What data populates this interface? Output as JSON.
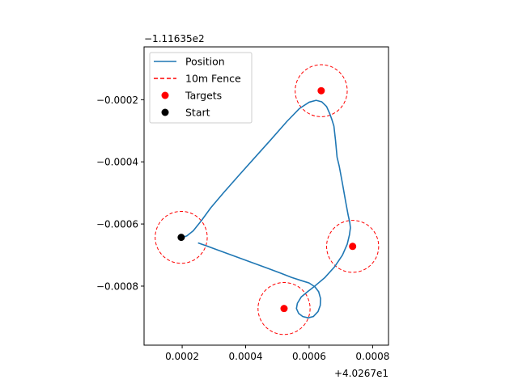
{
  "chart_data": {
    "type": "scatter",
    "x_offset_text": "+4.0267e1",
    "y_offset_text": "−1.11635e2",
    "xlim": [
      8e-05,
      0.00085
    ],
    "ylim": [
      -0.00099,
      -3e-05
    ],
    "x_ticks": [
      0.0002,
      0.0004,
      0.0006,
      0.0008
    ],
    "x_tick_labels": [
      "0.0002",
      "0.0004",
      "0.0006",
      "0.0008"
    ],
    "y_ticks": [
      -0.0002,
      -0.0004,
      -0.0006,
      -0.0008
    ],
    "y_tick_labels": [
      "−0.0002",
      "−0.0004",
      "−0.0006",
      "−0.0008"
    ],
    "grid": false,
    "legend_position": "top-left",
    "colors": {
      "position": "#1f77b4",
      "fence": "#ff0000",
      "targets": "#ff0000",
      "start": "#000000"
    },
    "legend": [
      "Position",
      "10m Fence",
      "Targets",
      "Start"
    ],
    "start": {
      "x": 0.000197,
      "y": -0.000643
    },
    "targets": [
      {
        "x": 0.000638,
        "y": -0.000171
      },
      {
        "x": 0.000737,
        "y": -0.000672
      },
      {
        "x": 0.000521,
        "y": -0.000872
      }
    ],
    "fence_radius_x": 8.2e-05,
    "series": [
      {
        "name": "Position",
        "x": [
          0.000197,
          0.000215,
          0.000235,
          0.00026,
          0.00029,
          0.00033,
          0.00038,
          0.00043,
          0.00048,
          0.00053,
          0.00057,
          0.0006,
          0.000622,
          0.00064,
          0.000655,
          0.000665,
          0.000672,
          0.000678,
          0.000683,
          0.000688,
          0.000695,
          0.000705,
          0.000715,
          0.000723,
          0.000728,
          0.00073,
          0.000727,
          0.00072,
          0.000705,
          0.00068,
          0.00065,
          0.00062,
          0.000595,
          0.000575,
          0.000563,
          0.00056,
          0.000567,
          0.00058,
          0.000597,
          0.000613,
          0.000628,
          0.000635,
          0.000636,
          0.00063,
          0.000618,
          0.0006,
          0.000575,
          0.000545,
          0.00051,
          0.00047,
          0.00043,
          0.00039,
          0.00035,
          0.00031,
          0.00027,
          0.00025
        ],
        "y": [
          -0.000645,
          -0.000638,
          -0.000622,
          -0.00059,
          -0.000548,
          -0.0005,
          -0.000442,
          -0.000385,
          -0.000328,
          -0.00027,
          -0.000228,
          -0.000208,
          -0.000202,
          -0.000207,
          -0.000222,
          -0.000245,
          -0.000265,
          -0.000285,
          -0.00033,
          -0.000385,
          -0.000415,
          -0.00047,
          -0.000528,
          -0.000572,
          -0.000595,
          -0.000612,
          -0.000635,
          -0.000665,
          -0.0007,
          -0.000738,
          -0.000772,
          -0.000798,
          -0.000818,
          -0.000835,
          -0.000855,
          -0.000872,
          -0.000888,
          -0.000898,
          -0.000902,
          -0.000898,
          -0.000882,
          -0.000862,
          -0.00084,
          -0.000818,
          -0.000802,
          -0.00079,
          -0.000782,
          -0.000772,
          -0.000758,
          -0.000743,
          -0.000728,
          -0.000713,
          -0.000698,
          -0.000683,
          -0.000668,
          -0.000661
        ]
      }
    ]
  }
}
